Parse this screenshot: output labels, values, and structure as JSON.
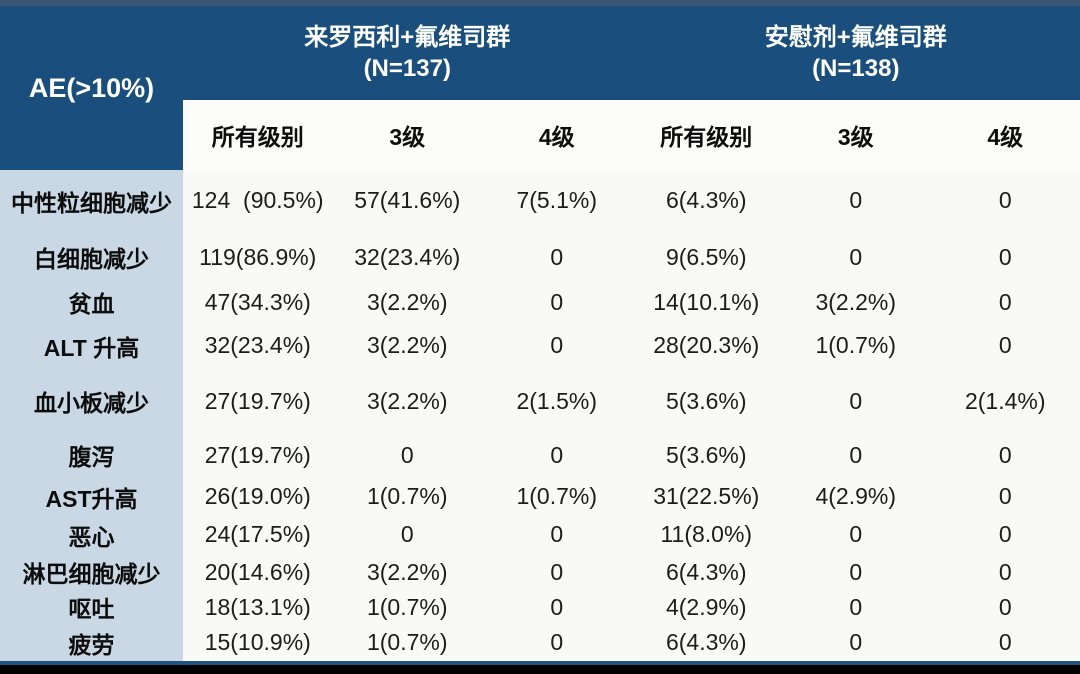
{
  "table": {
    "corner_label": "AE(>10%)",
    "groups": [
      {
        "name": "来罗西利+氟维司群",
        "n": "(N=137)"
      },
      {
        "name": "安慰剂+氟维司群",
        "n": "(N=138)"
      }
    ],
    "sub_headers": [
      "所有级别",
      "3级",
      "4级",
      "所有级别",
      "3级",
      "4级"
    ],
    "rows": [
      {
        "label": "中性粒细胞减少",
        "values": [
          "124  (90.5%)",
          "57(41.6%)",
          "7(5.1%)",
          "6(4.3%)",
          "0",
          "0"
        ]
      },
      {
        "label": "白细胞减少",
        "values": [
          "119(86.9%)",
          "32(23.4%)",
          "0",
          "9(6.5%)",
          "0",
          "0"
        ]
      },
      {
        "label": "贫血",
        "values": [
          "47(34.3%)",
          "3(2.2%)",
          "0",
          "14(10.1%)",
          "3(2.2%)",
          "0"
        ]
      },
      {
        "label": "ALT 升高",
        "values": [
          "32(23.4%)",
          "3(2.2%)",
          "0",
          "28(20.3%)",
          "1(0.7%)",
          "0"
        ]
      },
      {
        "label": "血小板减少",
        "values": [
          "27(19.7%)",
          "3(2.2%)",
          "2(1.5%)",
          "5(3.6%)",
          "0",
          "2(1.4%)"
        ]
      },
      {
        "label": "腹泻",
        "values": [
          "27(19.7%)",
          "0",
          "0",
          "5(3.6%)",
          "0",
          "0"
        ]
      },
      {
        "label": "AST升高",
        "values": [
          "26(19.0%)",
          "1(0.7%)",
          "1(0.7%)",
          "31(22.5%)",
          "4(2.9%)",
          "0"
        ]
      },
      {
        "label": "恶心",
        "values": [
          "24(17.5%)",
          "0",
          "0",
          "11(8.0%)",
          "0",
          "0"
        ]
      },
      {
        "label": "淋巴细胞减少",
        "values": [
          "20(14.6%)",
          "3(2.2%)",
          "0",
          "6(4.3%)",
          "0",
          "0"
        ]
      },
      {
        "label": "呕吐",
        "values": [
          "18(13.1%)",
          "1(0.7%)",
          "0",
          "4(2.9%)",
          "0",
          "0"
        ]
      },
      {
        "label": "疲劳",
        "values": [
          "15(10.9%)",
          "1(0.7%)",
          "0",
          "6(4.3%)",
          "0",
          "0"
        ]
      }
    ]
  },
  "chart_data": {
    "type": "table",
    "title": "AE(>10%)",
    "column_groups": [
      "来罗西利+氟维司群 (N=137)",
      "安慰剂+氟维司群 (N=138)"
    ],
    "columns": [
      "所有级别",
      "3级",
      "4级",
      "所有级别",
      "3级",
      "4级"
    ],
    "row_labels": [
      "中性粒细胞减少",
      "白细胞减少",
      "贫血",
      "ALT 升高",
      "血小板减少",
      "腹泻",
      "AST升高",
      "恶心",
      "淋巴细胞减少",
      "呕吐",
      "疲劳"
    ]
  },
  "colors": {
    "header_bg": "#1a4e7c",
    "subheader_bg": "#fcfcfb",
    "label_col_bg": "#c9d8e4",
    "body_bg": "#f9f9f7",
    "top_strip": "#3b5573",
    "accent_line": "#1f557f",
    "frame_black": "#000000",
    "text_dark": "#1c1c1c"
  }
}
